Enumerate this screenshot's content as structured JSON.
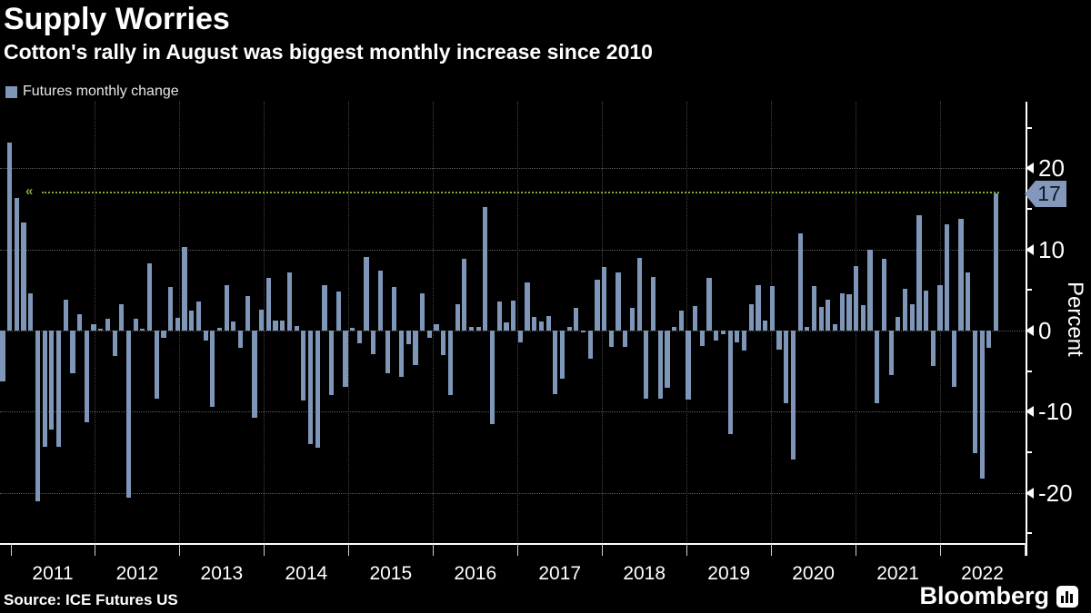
{
  "header": {
    "title": "Supply Worries",
    "subtitle": "Cotton's rally in August was biggest monthly increase since 2010"
  },
  "legend": {
    "label": "Futures monthly change",
    "swatch_color": "#7e96b7"
  },
  "footer": {
    "source": "Source: ICE Futures US",
    "brand": "Bloomberg"
  },
  "chart_data": {
    "type": "bar",
    "title": "Supply Worries",
    "series_name": "Futures monthly change",
    "x_start_month": "2010-10",
    "x_end_month": "2022-08",
    "x_tick_years": [
      "2011",
      "2012",
      "2013",
      "2014",
      "2015",
      "2016",
      "2017",
      "2018",
      "2019",
      "2020",
      "2021",
      "2022"
    ],
    "ylabel": "Percent",
    "ylim": [
      -26,
      28
    ],
    "yticks_major": [
      20,
      10,
      0,
      -10,
      -20
    ],
    "yticks_minor": [
      25,
      15,
      5,
      -5,
      -15,
      -25
    ],
    "grid": "dotted",
    "legend_position": "top-left",
    "bar_color": "#7e96b7",
    "highlight": {
      "value": 17,
      "label": "17",
      "line_color": "#84ab2e",
      "flag_color": "#8398bb"
    },
    "values": [
      -6.3,
      23.2,
      16.4,
      13.3,
      4.6,
      -21.0,
      -14.3,
      -12.2,
      -14.3,
      3.8,
      -5.3,
      2.0,
      -11.3,
      0.8,
      0.2,
      1.5,
      -3.1,
      3.3,
      -20.6,
      1.4,
      0.2,
      8.3,
      -8.4,
      -0.9,
      5.4,
      1.6,
      10.3,
      2.5,
      3.6,
      -1.2,
      -9.4,
      0.3,
      5.6,
      1.1,
      -2.1,
      4.2,
      -10.7,
      2.6,
      6.5,
      1.2,
      1.2,
      7.2,
      0.6,
      -8.6,
      -14.0,
      -14.4,
      5.6,
      -8.0,
      4.8,
      -6.9,
      0.3,
      -1.6,
      9.1,
      -2.9,
      7.4,
      -5.3,
      5.4,
      -5.7,
      -1.7,
      -4.2,
      4.6,
      -0.9,
      0.8,
      -3.0,
      -7.9,
      3.2,
      8.9,
      0.5,
      0.4,
      15.2,
      -11.5,
      3.6,
      1.0,
      3.7,
      -1.4,
      5.9,
      1.7,
      1.1,
      1.8,
      -7.8,
      -5.9,
      0.4,
      2.8,
      -0.2,
      -3.5,
      6.3,
      7.8,
      -2.0,
      7.2,
      -2.0,
      2.8,
      9.0,
      -8.4,
      6.6,
      -8.4,
      -7.0,
      0.5,
      2.5,
      -8.5,
      3.0,
      -1.9,
      6.5,
      -1.2,
      -0.5,
      -12.8,
      -1.5,
      -2.5,
      3.2,
      5.6,
      1.2,
      5.5,
      -2.3,
      -9.0,
      -15.9,
      12.0,
      0.4,
      5.5,
      2.9,
      3.8,
      0.8,
      4.6,
      4.5,
      8.0,
      3.1,
      10.0,
      -9.0,
      8.8,
      -5.5,
      1.7,
      5.1,
      3.3,
      14.2,
      4.9,
      -4.4,
      5.6,
      13.1,
      -6.9,
      13.8,
      7.2,
      -15.1,
      -18.2,
      -2.1,
      16.9
    ]
  }
}
